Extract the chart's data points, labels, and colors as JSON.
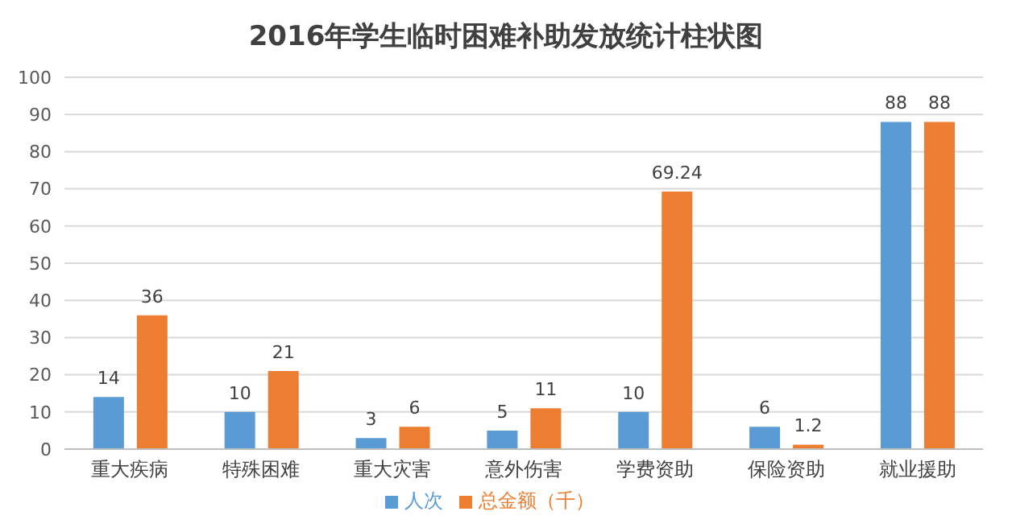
{
  "chart_data": {
    "type": "bar",
    "title": "2016年学生临时困难补助发放统计柱状图",
    "categories": [
      "重大疾病",
      "特殊困难",
      "重大灾害",
      "意外伤害",
      "学费资助",
      "保险资助",
      "就业援助"
    ],
    "series": [
      {
        "name": "人次",
        "color": "#5b9bd5",
        "values": [
          14,
          10,
          3,
          5,
          10,
          6,
          88
        ]
      },
      {
        "name": "总金额（千）",
        "color": "#ed7d31",
        "values": [
          36,
          21,
          6,
          11,
          69.24,
          1.2,
          88
        ]
      }
    ],
    "ylim": [
      0,
      100
    ],
    "yticks": [
      0,
      10,
      20,
      30,
      40,
      50,
      60,
      70,
      80,
      90,
      100
    ],
    "grid": "y",
    "legend": "bottom",
    "data_labels": true
  }
}
